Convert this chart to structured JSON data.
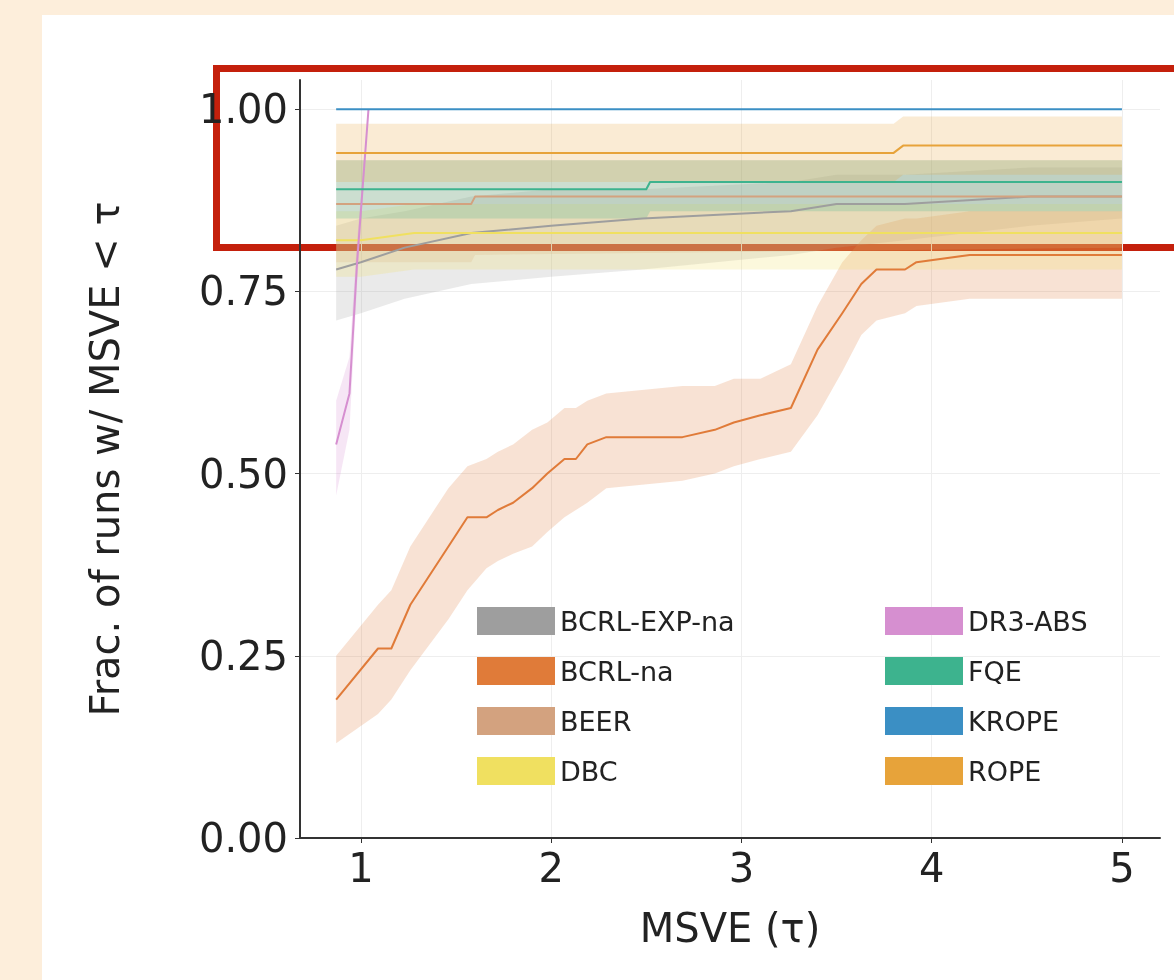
{
  "chart_data": {
    "type": "line",
    "xlabel": "MSVE (τ)",
    "ylabel": "Frac. of runs w/ MSVE < τ",
    "xlim": [
      0.68,
      5.2
    ],
    "xticks": [
      1,
      2,
      3,
      4,
      5
    ],
    "ylim": [
      0,
      1.04
    ],
    "yticks": [
      {
        "value": 0,
        "label": "0.00"
      },
      {
        "value": 0.25,
        "label": "0.25"
      },
      {
        "value": 0.5,
        "label": "0.50"
      },
      {
        "value": 0.75,
        "label": "0.75"
      },
      {
        "value": 1,
        "label": "1.00"
      }
    ],
    "grid": true,
    "legend": "bottom right",
    "marker": "none",
    "line_style": "solid",
    "series": [
      {
        "name": "BCRL-EXP-na",
        "color": "#9e9e9e",
        "x": [
          0.87,
          1.0,
          1.23,
          1.58,
          2.0,
          2.48,
          3.26,
          3.5,
          3.86,
          4.52,
          5.0
        ],
        "values": [
          0.78,
          0.79,
          0.81,
          0.83,
          0.84,
          0.85,
          0.86,
          0.87,
          0.87,
          0.88,
          0.88
        ],
        "lower": [
          0.71,
          0.72,
          0.74,
          0.76,
          0.77,
          0.78,
          0.8,
          0.81,
          0.82,
          0.84,
          0.85
        ],
        "upper": [
          0.84,
          0.85,
          0.86,
          0.88,
          0.89,
          0.89,
          0.9,
          0.91,
          0.91,
          0.92,
          0.92
        ]
      },
      {
        "name": "BCRL-na",
        "color": "#e07b39",
        "x": [
          0.87,
          1.09,
          1.16,
          1.26,
          1.46,
          1.56,
          1.66,
          1.72,
          1.8,
          1.9,
          1.98,
          2.07,
          2.13,
          2.19,
          2.29,
          2.69,
          2.86,
          2.96,
          3.1,
          3.26,
          3.4,
          3.53,
          3.63,
          3.71,
          3.86,
          3.92,
          4.2,
          5.0
        ],
        "values": [
          0.19,
          0.26,
          0.26,
          0.32,
          0.4,
          0.44,
          0.44,
          0.45,
          0.46,
          0.48,
          0.5,
          0.52,
          0.52,
          0.54,
          0.55,
          0.55,
          0.56,
          0.57,
          0.58,
          0.59,
          0.67,
          0.72,
          0.76,
          0.78,
          0.78,
          0.79,
          0.8,
          0.8
        ],
        "lower": [
          0.13,
          0.17,
          0.19,
          0.23,
          0.3,
          0.34,
          0.37,
          0.38,
          0.39,
          0.4,
          0.42,
          0.44,
          0.45,
          0.46,
          0.48,
          0.49,
          0.5,
          0.51,
          0.52,
          0.53,
          0.58,
          0.64,
          0.69,
          0.71,
          0.72,
          0.73,
          0.74,
          0.74
        ],
        "upper": [
          0.25,
          0.32,
          0.34,
          0.4,
          0.48,
          0.51,
          0.52,
          0.53,
          0.54,
          0.56,
          0.57,
          0.59,
          0.59,
          0.6,
          0.61,
          0.62,
          0.62,
          0.63,
          0.63,
          0.65,
          0.73,
          0.79,
          0.82,
          0.84,
          0.85,
          0.85,
          0.86,
          0.86
        ]
      },
      {
        "name": "BEER",
        "color": "#d3a27f",
        "x": [
          0.87,
          1.58,
          1.6,
          5.0
        ],
        "values": [
          0.87,
          0.87,
          0.88,
          0.88
        ],
        "lower": [
          0.79,
          0.79,
          0.8,
          0.81
        ],
        "upper": [
          0.93,
          0.93,
          0.93,
          0.93
        ]
      },
      {
        "name": "DBC",
        "color": "#f0e060",
        "x": [
          0.87,
          1.0,
          1.28,
          5.0
        ],
        "values": [
          0.82,
          0.82,
          0.83,
          0.83
        ],
        "lower": [
          0.77,
          0.77,
          0.78,
          0.78
        ],
        "upper": [
          0.86,
          0.86,
          0.87,
          0.87
        ]
      },
      {
        "name": "DR3-ABS",
        "color": "#d68fd0",
        "x": [
          0.87,
          0.94,
          0.98,
          1.04
        ],
        "values": [
          0.54,
          0.61,
          0.79,
          1.0
        ],
        "lower": [
          0.47,
          0.56,
          0.76,
          1.0
        ],
        "upper": [
          0.6,
          0.66,
          0.82,
          1.0
        ]
      },
      {
        "name": "FQE",
        "color": "#3db38e",
        "x": [
          0.87,
          2.5,
          2.52,
          5.0
        ],
        "values": [
          0.89,
          0.89,
          0.9,
          0.9
        ],
        "lower": [
          0.85,
          0.85,
          0.86,
          0.86
        ],
        "upper": [
          0.93,
          0.93,
          0.93,
          0.93
        ]
      },
      {
        "name": "KROPE",
        "color": "#3b8fc4",
        "x": [
          0.87,
          5.0
        ],
        "values": [
          1.0,
          1.0
        ]
      },
      {
        "name": "ROPE",
        "color": "#e7a33a",
        "x": [
          0.87,
          1.55,
          3.8,
          3.85,
          5.0
        ],
        "values": [
          0.94,
          0.94,
          0.94,
          0.95,
          0.95
        ],
        "lower": [
          0.9,
          0.9,
          0.9,
          0.91,
          0.91
        ],
        "upper": [
          0.98,
          0.98,
          0.98,
          0.99,
          0.99
        ]
      }
    ]
  }
}
